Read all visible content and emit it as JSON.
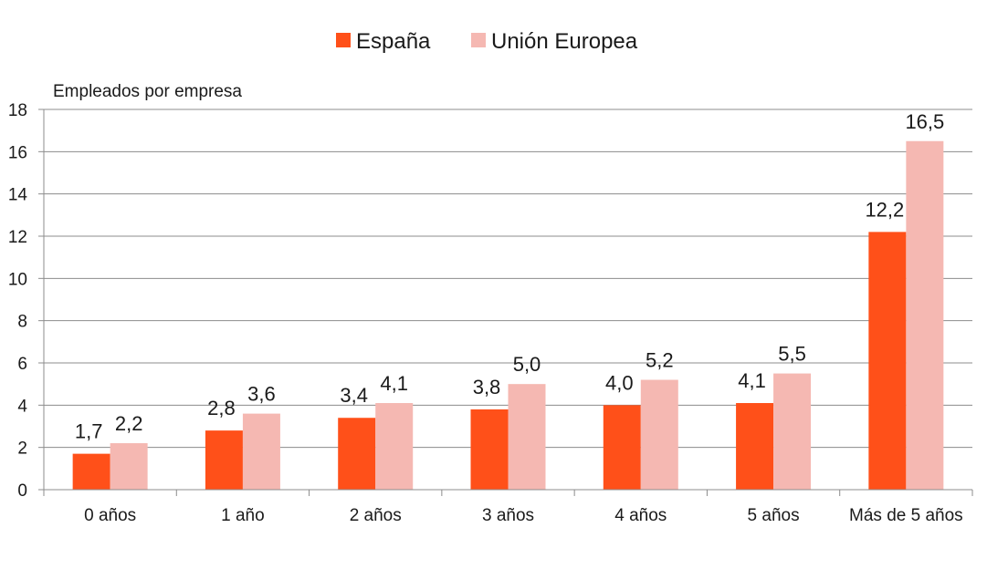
{
  "chart_data": {
    "type": "bar",
    "ylabel": "Empleados por empresa",
    "xlabel": "",
    "ylim": [
      0,
      18
    ],
    "yticks": [
      0,
      2,
      4,
      6,
      8,
      10,
      12,
      14,
      16,
      18
    ],
    "grid": true,
    "legend_position": "top-center",
    "categories": [
      "0 años",
      "1 año",
      "2 años",
      "3 años",
      "4 años",
      "5 años",
      "Más de 5 años"
    ],
    "series": [
      {
        "name": "España",
        "color": "#ff5019",
        "values": [
          1.7,
          2.8,
          3.4,
          3.8,
          4.0,
          4.1,
          12.2
        ],
        "labels": [
          "1,7",
          "2,8",
          "3,4",
          "3,8",
          "4,0",
          "4,1",
          "12,2"
        ]
      },
      {
        "name": "Unión Europea",
        "color": "#f5b8b2",
        "values": [
          2.2,
          3.6,
          4.1,
          5.0,
          5.2,
          5.5,
          16.5
        ],
        "labels": [
          "2,2",
          "3,6",
          "4,1",
          "5,0",
          "5,2",
          "5,5",
          "16,5"
        ]
      }
    ]
  }
}
